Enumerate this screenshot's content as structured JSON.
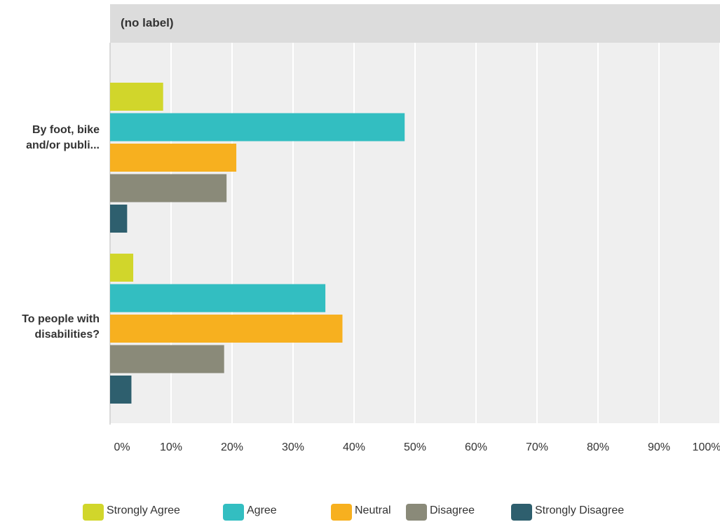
{
  "chart_data": {
    "type": "bar",
    "orientation": "horizontal",
    "title": "(no label)",
    "categories": [
      "By foot, bike and/or publi...",
      "To people with disabilities?"
    ],
    "category_lines": [
      [
        "By foot, bike",
        "and/or publi..."
      ],
      [
        "To people with",
        "disabilities?"
      ]
    ],
    "series": [
      {
        "name": "Strongly Agree",
        "color": "#d1d62b",
        "values": [
          8.7,
          3.8
        ]
      },
      {
        "name": "Agree",
        "color": "#33bec1",
        "values": [
          48.3,
          35.3
        ]
      },
      {
        "name": "Neutral",
        "color": "#f7b01f",
        "values": [
          20.7,
          38.1
        ]
      },
      {
        "name": "Disagree",
        "color": "#8a8a79",
        "values": [
          19.1,
          18.7
        ]
      },
      {
        "name": "Strongly Disagree",
        "color": "#2e5f6e",
        "values": [
          2.8,
          3.5
        ]
      }
    ],
    "xlim": [
      0,
      100
    ],
    "xticks": [
      "0%",
      "10%",
      "20%",
      "30%",
      "40%",
      "50%",
      "60%",
      "70%",
      "80%",
      "90%",
      "100%"
    ],
    "grid": true,
    "legend": "bottom"
  }
}
